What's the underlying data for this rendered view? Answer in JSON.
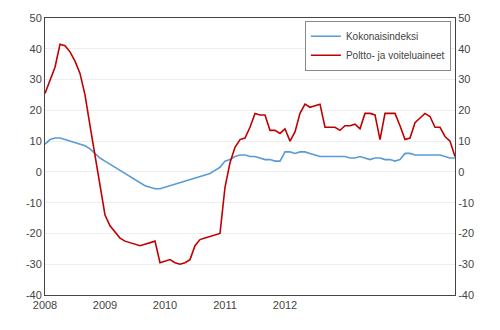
{
  "chart_data": {
    "type": "line",
    "categories": [
      "2008",
      null,
      null,
      null,
      null,
      null,
      null,
      null,
      null,
      null,
      null,
      null,
      "2009",
      null,
      null,
      null,
      null,
      null,
      null,
      null,
      null,
      null,
      null,
      null,
      "2010",
      null,
      null,
      null,
      null,
      null,
      null,
      null,
      null,
      null,
      null,
      null,
      "2011",
      null,
      null,
      null,
      null,
      null,
      null,
      null,
      null,
      null,
      null,
      null,
      "2012",
      null,
      null,
      null,
      null,
      null,
      null,
      null,
      null,
      null,
      null,
      null,
      null,
      null,
      null,
      null,
      null,
      null,
      null,
      null,
      null,
      null,
      null,
      null,
      null,
      null,
      null,
      null,
      null,
      null,
      null,
      null,
      null,
      null,
      null
    ],
    "series": [
      {
        "name": "Kokonaisindeksi",
        "color": "#5b9bd5",
        "values": [
          9.0,
          10.5,
          11.0,
          11.0,
          10.5,
          10.0,
          9.5,
          9.0,
          8.5,
          7.5,
          6.0,
          4.5,
          3.5,
          2.5,
          1.5,
          0.5,
          -0.5,
          -1.5,
          -2.5,
          -3.5,
          -4.5,
          -5.0,
          -5.5,
          -5.5,
          -5.0,
          -4.5,
          -4.0,
          -3.5,
          -3.0,
          -2.5,
          -2.0,
          -1.5,
          -1.0,
          -0.5,
          0.5,
          1.5,
          3.5,
          4.0,
          5.0,
          5.5,
          5.5,
          5.0,
          5.0,
          4.5,
          4.0,
          4.0,
          3.5,
          3.5,
          6.5,
          6.5,
          6.0,
          6.5,
          6.5,
          6.0,
          5.5,
          5.0,
          5.0,
          5.0,
          5.0,
          5.0,
          5.0,
          4.5,
          4.5,
          5.0,
          4.5,
          4.0,
          4.5,
          4.5,
          4.0,
          4.0,
          3.5,
          4.0,
          6.0,
          6.0,
          5.5,
          5.5,
          5.5,
          5.5,
          5.5,
          5.5,
          5.0,
          4.5,
          4.5
        ]
      },
      {
        "name": "Poltto- ja voiteluaineet",
        "color": "#c00000",
        "values": [
          25.5,
          30.0,
          34.0,
          41.5,
          41.0,
          39.0,
          36.0,
          32.0,
          25.0,
          15.0,
          5.0,
          -5.0,
          -14.0,
          -17.5,
          -19.5,
          -21.5,
          -22.5,
          -23.0,
          -23.5,
          -24.0,
          -23.5,
          -23.0,
          -22.5,
          -29.5,
          -29.0,
          -28.5,
          -29.5,
          -30.0,
          -29.5,
          -28.5,
          -24.0,
          -22.0,
          -21.5,
          -21.0,
          -20.5,
          -20.0,
          -5.0,
          3.0,
          8.0,
          10.5,
          11.0,
          14.5,
          19.0,
          18.5,
          18.5,
          13.5,
          13.5,
          12.5,
          14.0,
          10.0,
          13.0,
          19.0,
          22.0,
          21.0,
          21.5,
          22.0,
          14.5,
          14.5,
          14.5,
          13.5,
          15.0,
          15.0,
          15.5,
          14.0,
          19.0,
          19.0,
          18.5,
          10.5,
          19.0,
          19.0,
          19.0,
          15.0,
          10.5,
          11.0,
          16.0,
          17.5,
          19.0,
          18.0,
          14.5,
          14.5,
          11.5,
          10.0,
          5.0
        ]
      }
    ],
    "ylim": [
      -40,
      50
    ],
    "yticks": [
      -40,
      -30,
      -20,
      -10,
      0,
      10,
      20,
      30,
      40,
      50
    ],
    "y2lim": [
      -40,
      50
    ],
    "y2ticks": [
      -40,
      -30,
      -20,
      -10,
      0,
      10,
      20,
      30,
      40,
      50
    ],
    "grid": true,
    "legend": "upper right"
  }
}
